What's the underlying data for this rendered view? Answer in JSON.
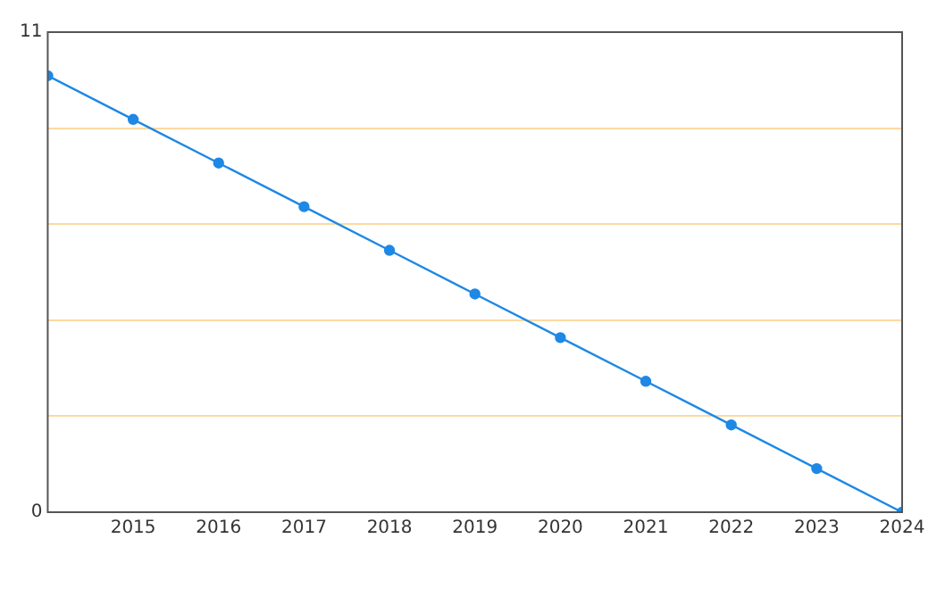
{
  "chart_data": {
    "type": "line",
    "x": [
      2014,
      2015,
      2016,
      2017,
      2018,
      2019,
      2020,
      2021,
      2022,
      2023,
      2024
    ],
    "series": [
      {
        "color": "#1e88e5",
        "values": [
          10,
          9,
          8,
          7,
          6,
          5,
          4,
          3,
          2,
          1,
          0
        ]
      }
    ],
    "xlim": [
      2014,
      2024
    ],
    "xticks": [
      2015,
      2016,
      2017,
      2018,
      2019,
      2020,
      2021,
      2022,
      2023,
      2024
    ],
    "ylim": [
      0,
      11
    ],
    "yticks": [
      0,
      {
        "value": 2.2,
        "label": null
      },
      {
        "value": 4.4,
        "label": null
      },
      {
        "value": 6.6,
        "label": null
      },
      {
        "value": 8.8,
        "label": null
      },
      11
    ],
    "grid": "y",
    "legend": false,
    "marker": "circle",
    "line_style": "solid"
  }
}
